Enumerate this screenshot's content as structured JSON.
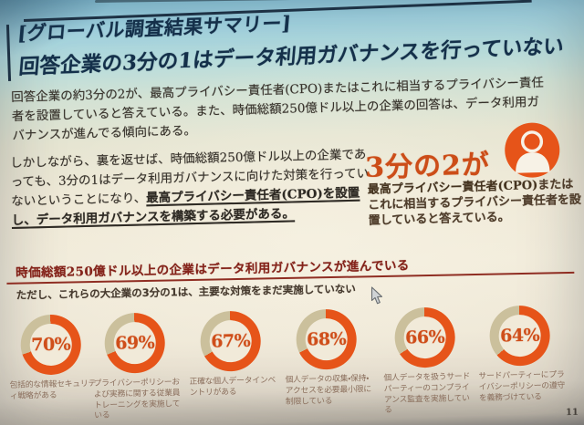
{
  "slide": {
    "title": {
      "line1": "[グローバル調査結果サマリー]",
      "line2": "回答企業の3分の1はデータ利用ガバナンスを行っていない"
    },
    "paragraph1": "回答企業の約3分の2が、最高プライバシー責任者(CPO)またはこれに相当するプライバシー責任者を設置していると答えている。また、時価総額250億ドル以上の企業の回答は、データ利用ガバナンスが進んでる傾向にある。",
    "paragraph2": {
      "normal": "しかしながら、裏を返せば、時価総額250億ドル以上の企業であっても、3分の1はデータ利用ガバナンスに向けた対策を行っていないということになり、",
      "emphasized": "最高プライバシー責任者(CPO)を設置し、データ利用ガバナンスを構築する必要がある。"
    },
    "callout": {
      "stat": "3分の2が",
      "icon": "person-icon",
      "description_bold": "最高プライバシー責任者(CPO)",
      "description_rest": "またはこれに相当するプライバシー責任者を設置していると答えている。"
    },
    "page_number": "11"
  },
  "chart_data": {
    "type": "pie",
    "subtype": "donut-small-multiples",
    "title": "時価総額250億ドル以上の企業はデータ利用ガバナンスが進んでいる",
    "subtitle": "ただし、これらの大企業の3分の1は、主要な対策をまだ実施していない",
    "unit": "%",
    "start_angle_deg": 0,
    "direction": "clockwise",
    "items": [
      {
        "value": 70,
        "label": "包括的な情報セキュリティ戦略がある"
      },
      {
        "value": 69,
        "label": "プライバシーポリシーおよび実務に関する従業員トレーニングを実施している"
      },
      {
        "value": 67,
        "label": "正確な個人データインベントリがある"
      },
      {
        "value": 68,
        "label": "個人データの収集・保持・アクセスを必要最小限に制限している"
      },
      {
        "value": 66,
        "label": "個人データを扱うサードパーティーのコンプライアンス監査を実施している"
      },
      {
        "value": 64,
        "label": "サードパーティーにプライバシーポリシーの遵守を義務づけている"
      }
    ],
    "colors": {
      "filled_arc": "#e65419",
      "remainder_arc": "#cbc09c",
      "percent_text": "#cf4e1a"
    }
  }
}
